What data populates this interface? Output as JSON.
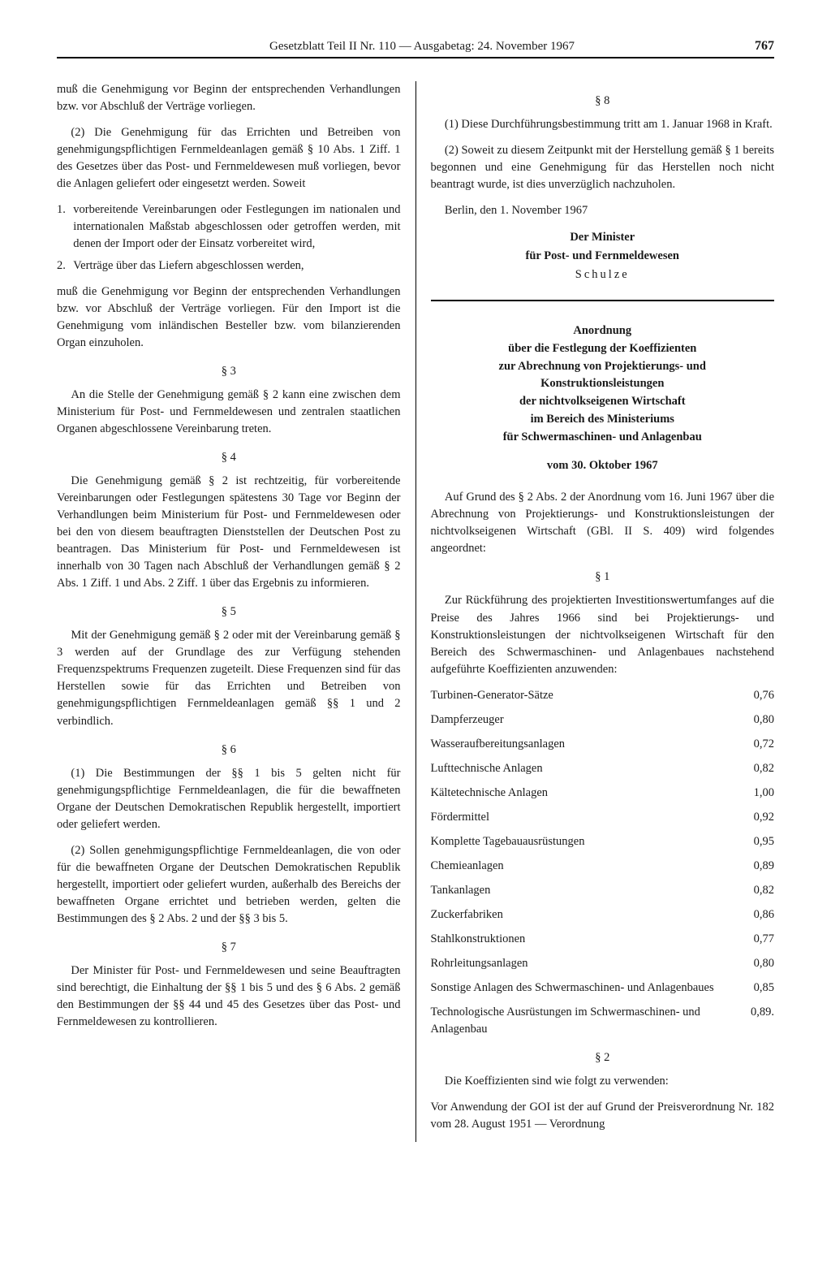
{
  "header": {
    "title": "Gesetzblatt Teil II Nr. 110 — Ausgabetag: 24. November 1967",
    "page": "767"
  },
  "left": {
    "p0": "muß die Genehmigung vor Beginn der entsprechenden Verhandlungen bzw. vor Abschluß der Verträge vorliegen.",
    "p1": "(2) Die Genehmigung für das Errichten und Betreiben von genehmigungspflichtigen Fernmeldeanlagen gemäß § 10 Abs. 1 Ziff. 1 des Gesetzes über das Post- und Fernmeldewesen muß vorliegen, bevor die Anlagen geliefert oder eingesetzt werden. Soweit",
    "l1n": "1.",
    "l1t": "vorbereitende Vereinbarungen oder Festlegungen im nationalen und internationalen Maßstab abgeschlossen oder getroffen werden, mit denen der Import oder der Einsatz vorbereitet wird,",
    "l2n": "2.",
    "l2t": "Verträge über das Liefern abgeschlossen werden,",
    "p2": "muß die Genehmigung vor Beginn der entsprechenden Verhandlungen bzw. vor Abschluß der Verträge vorliegen. Für den Import ist die Genehmigung vom inländischen Besteller bzw. vom bilanzierenden Organ einzuholen.",
    "s3h": "§ 3",
    "s3p": "An die Stelle der Genehmigung gemäß § 2 kann eine zwischen dem Ministerium für Post- und Fernmeldewesen und zentralen staatlichen Organen abgeschlossene Vereinbarung treten.",
    "s4h": "§ 4",
    "s4p": "Die Genehmigung gemäß § 2 ist rechtzeitig, für vorbereitende Vereinbarungen oder Festlegungen spätestens 30 Tage vor Beginn der Verhandlungen beim Ministerium für Post- und Fernmeldewesen oder bei den von diesem beauftragten Dienststellen der Deutschen Post zu beantragen. Das Ministerium für Post- und Fernmeldewesen ist innerhalb von 30 Tagen nach Abschluß der Verhandlungen gemäß § 2 Abs. 1 Ziff. 1 und Abs. 2 Ziff. 1 über das Ergebnis zu informieren.",
    "s5h": "§ 5",
    "s5p": "Mit der Genehmigung gemäß § 2 oder mit der Vereinbarung gemäß § 3 werden auf der Grundlage des zur Verfügung stehenden Frequenzspektrums Frequenzen zugeteilt. Diese Frequenzen sind für das Herstellen sowie für das Errichten und Betreiben von genehmigungspflichtigen Fernmeldeanlagen gemäß §§ 1 und 2 verbindlich.",
    "s6h": "§ 6",
    "s6p1": "(1) Die Bestimmungen der §§ 1 bis 5 gelten nicht für genehmigungspflichtige Fernmeldeanlagen, die für die bewaffneten Organe der Deutschen Demokratischen Republik hergestellt, importiert oder geliefert werden.",
    "s6p2": "(2) Sollen genehmigungspflichtige Fernmeldeanlagen, die von oder für die bewaffneten Organe der Deutschen Demokratischen Republik hergestellt, importiert oder geliefert wurden, außerhalb des Bereichs der bewaffneten Organe errichtet und betrieben werden, gelten die Bestimmungen des § 2 Abs. 2 und der §§ 3 bis 5.",
    "s7h": "§ 7",
    "s7p": "Der Minister für Post- und Fernmeldewesen und seine Beauftragten sind berechtigt, die Einhaltung der §§ 1 bis 5 und des § 6 Abs. 2 gemäß den Bestimmungen der §§ 44 und 45 des Gesetzes über das Post- und Fernmeldewesen zu kontrollieren."
  },
  "right": {
    "s8h": "§ 8",
    "s8p1": "(1) Diese Durchführungsbestimmung tritt am 1. Januar 1968 in Kraft.",
    "s8p2": "(2) Soweit zu diesem Zeitpunkt mit der Herstellung gemäß § 1 bereits begonnen und eine Genehmigung für das Herstellen noch nicht beantragt wurde, ist dies unverzüglich nachzuholen.",
    "date_loc": "Berlin, den 1. November 1967",
    "sig1": "Der Minister",
    "sig2": "für Post- und Fernmeldewesen",
    "sig3": "Schulze",
    "ano_title_l1": "Anordnung",
    "ano_title_l2": "über die Festlegung der Koeffizienten",
    "ano_title_l3": "zur Abrechnung von Projektierungs- und",
    "ano_title_l4": "Konstruktionsleistungen",
    "ano_title_l5": "der nichtvolkseigenen Wirtschaft",
    "ano_title_l6": "im Bereich des Ministeriums",
    "ano_title_l7": "für Schwermaschinen- und Anlagenbau",
    "ano_date": "vom 30. Oktober 1967",
    "ano_intro": "Auf Grund des § 2 Abs. 2 der Anordnung vom 16. Juni 1967 über die Abrechnung von Projektierungs- und Konstruktionsleistungen der nichtvolkseigenen Wirtschaft (GBl. II S. 409) wird folgendes angeordnet:",
    "s1h": "§ 1",
    "s1p": "Zur Rückführung des projektierten Investitionswertumfanges auf die Preise des Jahres 1966 sind bei Projektierungs- und Konstruktionsleistungen der nichtvolkseigenen Wirtschaft für den Bereich des Schwermaschinen- und Anlagenbaues nachstehend aufgeführte Koeffizienten anzuwenden:",
    "coefficients": [
      {
        "name": "Turbinen-Generator-Sätze",
        "value": "0,76"
      },
      {
        "name": "Dampferzeuger",
        "value": "0,80"
      },
      {
        "name": "Wasseraufbereitungsanlagen",
        "value": "0,72"
      },
      {
        "name": "Lufttechnische Anlagen",
        "value": "0,82"
      },
      {
        "name": "Kältetechnische Anlagen",
        "value": "1,00"
      },
      {
        "name": "Fördermittel",
        "value": "0,92"
      },
      {
        "name": "Komplette Tagebauausrüstungen",
        "value": "0,95"
      },
      {
        "name": "Chemieanlagen",
        "value": "0,89"
      },
      {
        "name": "Tankanlagen",
        "value": "0,82"
      },
      {
        "name": "Zuckerfabriken",
        "value": "0,86"
      },
      {
        "name": "Stahlkonstruktionen",
        "value": "0,77"
      },
      {
        "name": "Rohrleitungsanlagen",
        "value": "0,80"
      },
      {
        "name": "Sonstige Anlagen des Schwermaschinen- und Anlagenbaues",
        "value": "0,85"
      },
      {
        "name": "Technologische Ausrüstungen im Schwermaschinen- und Anlagenbau",
        "value": "0,89."
      }
    ],
    "s2h": "§ 2",
    "s2p1": "Die Koeffizienten sind wie folgt zu verwenden:",
    "s2p2": "Vor Anwendung der GOI ist der auf Grund der Preisverordnung Nr. 182 vom 28. August 1951 — Verordnung"
  }
}
